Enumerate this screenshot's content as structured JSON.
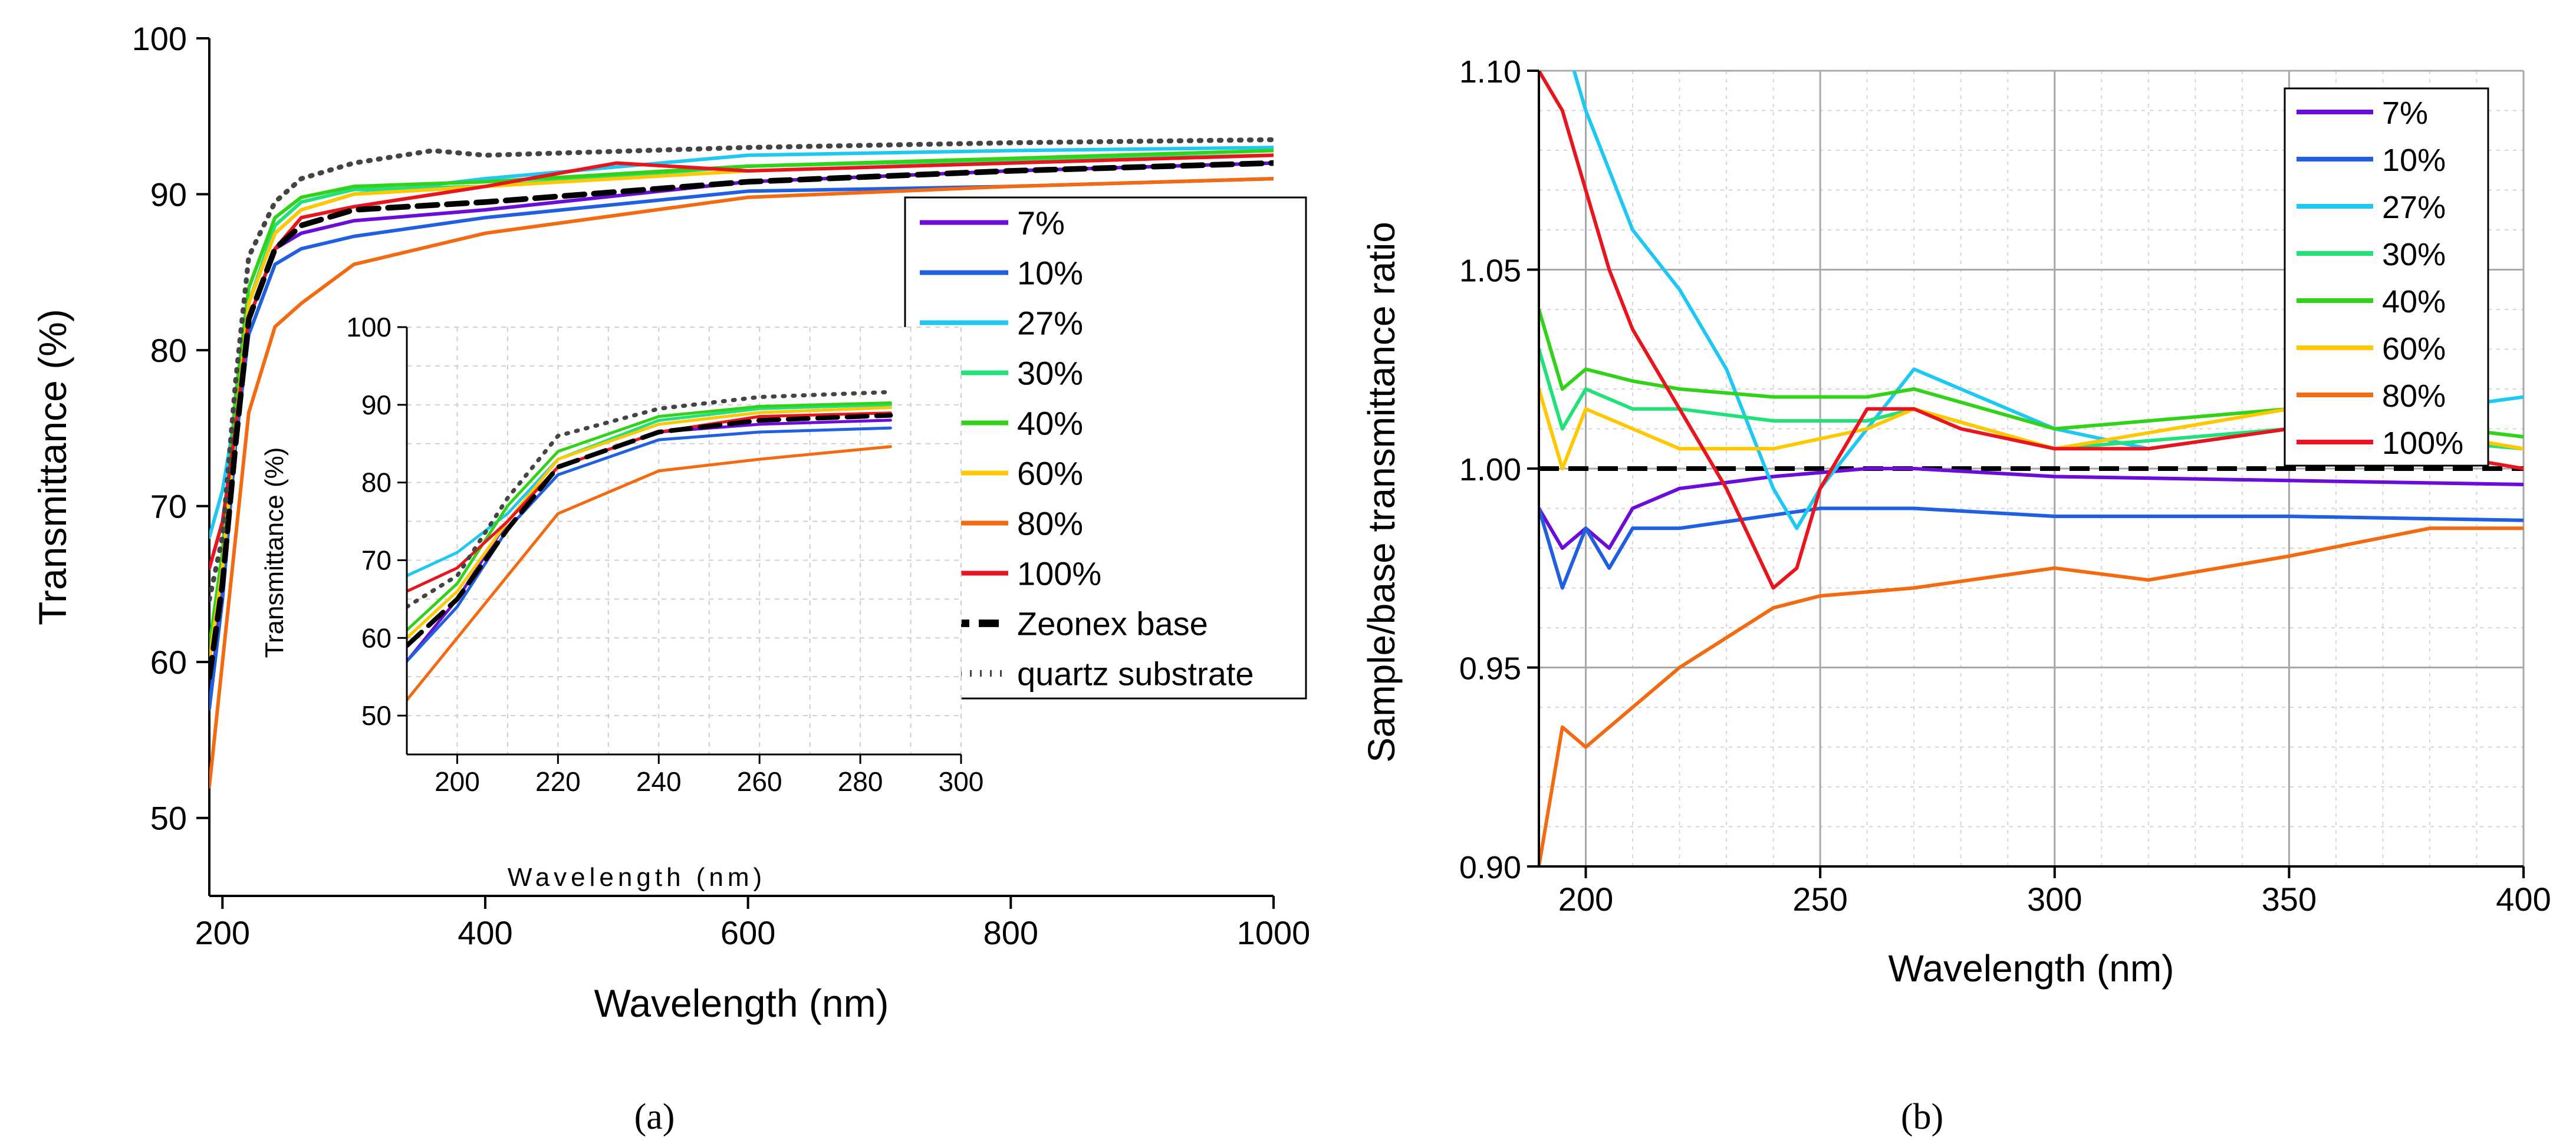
{
  "colors": {
    "7%": "#6a0dd9",
    "10%": "#1f5fe0",
    "27%": "#1fc8f0",
    "30%": "#22e07a",
    "40%": "#33d21a",
    "60%": "#ffc800",
    "80%": "#f26a12",
    "100%": "#e8141e",
    "Zeonex base": "#000000",
    "quartz substrate": "#444444"
  },
  "chart_data": [
    {
      "id": "a",
      "type": "line",
      "caption": "(a)",
      "xlabel": "Wavelength (nm)",
      "ylabel": "Transmittance (%)",
      "xlim": [
        190,
        1000
      ],
      "ylim": [
        45,
        100
      ],
      "xticks": [
        200,
        400,
        600,
        800,
        1000
      ],
      "yticks": [
        50,
        60,
        70,
        80,
        90,
        100
      ],
      "grid": false,
      "legend_position": "right",
      "legend": [
        "7%",
        "10%",
        "27%",
        "30%",
        "40%",
        "60%",
        "80%",
        "100%",
        "Zeonex base",
        "quartz substrate"
      ],
      "series": [
        {
          "name": "7%",
          "x": [
            190,
            200,
            210,
            220,
            240,
            260,
            300,
            400,
            600,
            800,
            1000
          ],
          "y": [
            57,
            65,
            75,
            82,
            86.5,
            87.5,
            88.3,
            89,
            90.8,
            91.5,
            92
          ]
        },
        {
          "name": "10%",
          "x": [
            190,
            200,
            210,
            220,
            240,
            260,
            300,
            400,
            600,
            800,
            1000
          ],
          "y": [
            57,
            64,
            74,
            81,
            85.5,
            86.5,
            87.3,
            88.5,
            90.2,
            90.5,
            91
          ]
        },
        {
          "name": "27%",
          "x": [
            190,
            200,
            210,
            220,
            240,
            260,
            300,
            400,
            600,
            800,
            1000
          ],
          "y": [
            68,
            71,
            76,
            83,
            87.5,
            89,
            90,
            91,
            92.5,
            92.8,
            93
          ]
        },
        {
          "name": "30%",
          "x": [
            190,
            200,
            210,
            220,
            240,
            260,
            300,
            400,
            600,
            800,
            1000
          ],
          "y": [
            60,
            66,
            75,
            83,
            88,
            89.5,
            90.3,
            90.5,
            91.8,
            92.2,
            92.5
          ]
        },
        {
          "name": "40%",
          "x": [
            190,
            200,
            210,
            220,
            240,
            260,
            300,
            400,
            600,
            800,
            1000
          ],
          "y": [
            61,
            67,
            77,
            84,
            88.5,
            89.8,
            90.5,
            90.8,
            91.8,
            92.3,
            92.8
          ]
        },
        {
          "name": "60%",
          "x": [
            190,
            200,
            210,
            220,
            240,
            260,
            300,
            400,
            600,
            800,
            1000
          ],
          "y": [
            60,
            66,
            75,
            83,
            87.5,
            89,
            90,
            90.5,
            91.5,
            92,
            92.5
          ]
        },
        {
          "name": "80%",
          "x": [
            190,
            200,
            210,
            220,
            240,
            260,
            300,
            400,
            600,
            800,
            1000
          ],
          "y": [
            52,
            60,
            68,
            76,
            81.5,
            83,
            85.5,
            87.5,
            89.8,
            90.5,
            91
          ]
        },
        {
          "name": "100%",
          "x": [
            190,
            200,
            210,
            220,
            240,
            260,
            300,
            400,
            500,
            600,
            800,
            1000
          ],
          "y": [
            66,
            69,
            75,
            82,
            86.5,
            88.5,
            89.2,
            90.5,
            92,
            91.5,
            92,
            92.5
          ]
        },
        {
          "name": "Zeonex base",
          "x": [
            190,
            200,
            210,
            220,
            240,
            260,
            300,
            400,
            600,
            800,
            1000
          ],
          "y": [
            59,
            65,
            74,
            82,
            86.5,
            88,
            89,
            89.5,
            90.8,
            91.5,
            92
          ]
        },
        {
          "name": "quartz substrate",
          "x": [
            190,
            200,
            210,
            220,
            240,
            260,
            300,
            360,
            400,
            600,
            800,
            1000
          ],
          "y": [
            64,
            68,
            78,
            86,
            89.5,
            91,
            92,
            92.8,
            92.5,
            93,
            93.3,
            93.5
          ]
        }
      ]
    },
    {
      "id": "a-inset",
      "type": "line",
      "xlabel": "Wavelength (nm)",
      "ylabel": "Transmittance (%)",
      "xlim": [
        190,
        300
      ],
      "ylim": [
        45,
        100
      ],
      "xticks": [
        200,
        220,
        240,
        260,
        280,
        300
      ],
      "yticks": [
        50,
        60,
        70,
        80,
        90,
        100
      ],
      "grid": true,
      "series_source": "same series as panel (a), x range 190-300 nm"
    },
    {
      "id": "b",
      "type": "line",
      "caption": "(b)",
      "xlabel": "Wavelength (nm)",
      "ylabel": "Sample/base transmittance ratio",
      "xlim": [
        190,
        400
      ],
      "ylim": [
        0.9,
        1.1
      ],
      "xticks": [
        200,
        250,
        300,
        350,
        400
      ],
      "yticks": [
        0.9,
        0.95,
        1.0,
        1.05,
        1.1
      ],
      "ytick_labels": [
        "0.90",
        "0.95",
        "1.00",
        "1.05",
        "1.10"
      ],
      "grid": true,
      "legend_position": "top-right",
      "legend": [
        "7%",
        "10%",
        "27%",
        "30%",
        "40%",
        "60%",
        "80%",
        "100%"
      ],
      "reference_line": 1.0,
      "series": [
        {
          "name": "7%",
          "x": [
            190,
            195,
            200,
            205,
            210,
            220,
            240,
            260,
            270,
            300,
            350,
            400
          ],
          "y": [
            0.99,
            0.98,
            0.985,
            0.98,
            0.99,
            0.995,
            0.998,
            1.0,
            1.0,
            0.998,
            0.997,
            0.996
          ]
        },
        {
          "name": "10%",
          "x": [
            190,
            195,
            200,
            205,
            210,
            220,
            250,
            270,
            300,
            350,
            400
          ],
          "y": [
            0.99,
            0.97,
            0.985,
            0.975,
            0.985,
            0.985,
            0.99,
            0.99,
            0.988,
            0.988,
            0.987
          ]
        },
        {
          "name": "27%",
          "x": [
            190,
            195,
            200,
            205,
            210,
            220,
            230,
            240,
            245,
            250,
            260,
            270,
            280,
            300,
            320,
            350,
            400
          ],
          "y": [
            1.12,
            1.11,
            1.09,
            1.075,
            1.06,
            1.045,
            1.025,
            0.995,
            0.985,
            0.995,
            1.01,
            1.025,
            1.02,
            1.01,
            1.005,
            1.01,
            1.018
          ]
        },
        {
          "name": "30%",
          "x": [
            190,
            195,
            200,
            210,
            220,
            240,
            260,
            270,
            300,
            350,
            400
          ],
          "y": [
            1.03,
            1.01,
            1.02,
            1.015,
            1.015,
            1.012,
            1.012,
            1.015,
            1.005,
            1.01,
            1.005
          ]
        },
        {
          "name": "40%",
          "x": [
            190,
            195,
            200,
            210,
            220,
            240,
            260,
            270,
            300,
            350,
            400
          ],
          "y": [
            1.04,
            1.02,
            1.025,
            1.022,
            1.02,
            1.018,
            1.018,
            1.02,
            1.01,
            1.015,
            1.008
          ]
        },
        {
          "name": "60%",
          "x": [
            190,
            195,
            200,
            210,
            220,
            240,
            260,
            270,
            300,
            350,
            400
          ],
          "y": [
            1.02,
            1.0,
            1.015,
            1.01,
            1.005,
            1.005,
            1.01,
            1.015,
            1.005,
            1.015,
            1.005
          ]
        },
        {
          "name": "80%",
          "x": [
            190,
            195,
            200,
            210,
            220,
            240,
            250,
            270,
            300,
            320,
            350,
            380,
            400
          ],
          "y": [
            0.9,
            0.935,
            0.93,
            0.94,
            0.95,
            0.965,
            0.968,
            0.97,
            0.975,
            0.972,
            0.978,
            0.985,
            0.985
          ]
        },
        {
          "name": "100%",
          "x": [
            190,
            195,
            200,
            205,
            210,
            220,
            230,
            240,
            245,
            250,
            260,
            270,
            280,
            300,
            320,
            350,
            400
          ],
          "y": [
            1.1,
            1.09,
            1.07,
            1.05,
            1.035,
            1.015,
            0.995,
            0.97,
            0.975,
            0.995,
            1.015,
            1.015,
            1.01,
            1.005,
            1.005,
            1.01,
            1.0
          ]
        },
        {
          "name": "Zeonex base",
          "x": [
            190,
            400
          ],
          "y": [
            1.0,
            1.0
          ]
        }
      ]
    }
  ]
}
